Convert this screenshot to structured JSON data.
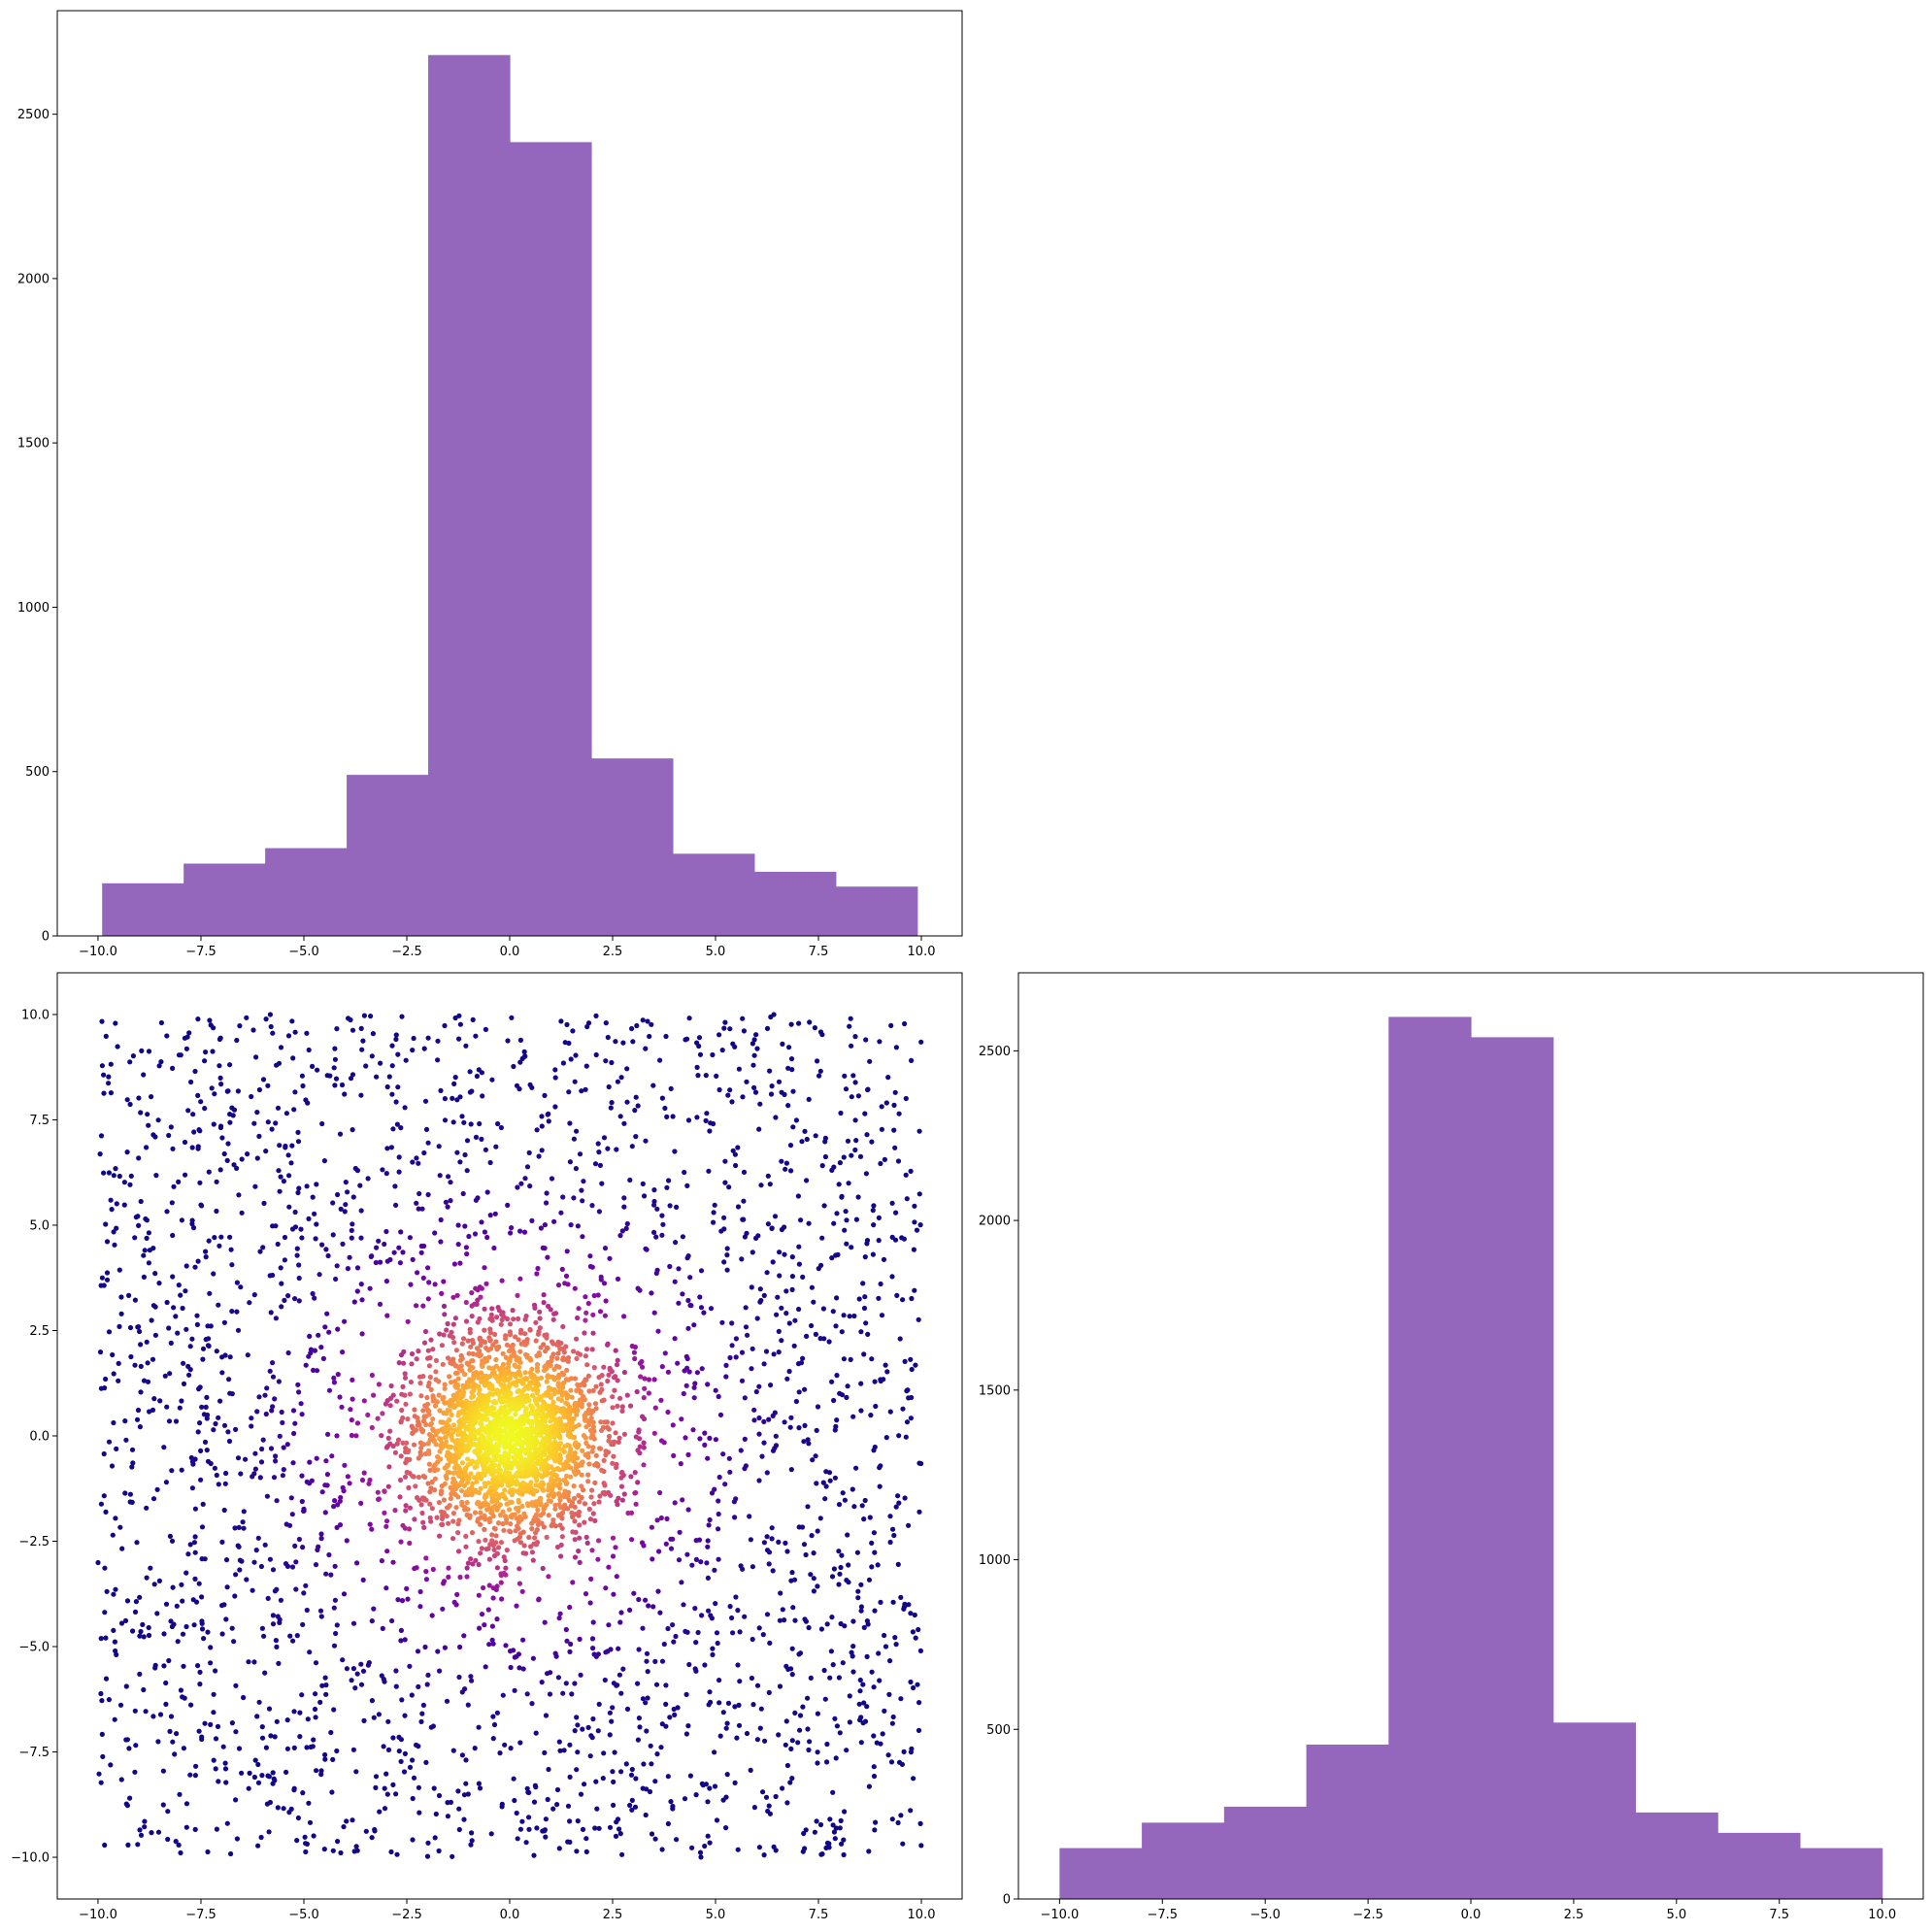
{
  "figure": {
    "background": "#ffffff"
  },
  "chart_data": [
    {
      "id": "hist-top",
      "type": "bar",
      "subtype": "histogram",
      "bar_color": "#9467bd",
      "bin_edges": [
        -9.9,
        -7.92,
        -5.94,
        -3.96,
        -1.98,
        0.0,
        1.98,
        3.96,
        5.94,
        7.92,
        9.9
      ],
      "values": [
        160,
        220,
        267,
        490,
        2680,
        2415,
        540,
        250,
        195,
        150
      ],
      "xlim": [
        -10.99,
        10.99
      ],
      "ylim": [
        0,
        2815
      ],
      "xticks": [
        -10.0,
        -7.5,
        -5.0,
        -2.5,
        0.0,
        2.5,
        5.0,
        7.5,
        10.0
      ],
      "xtick_labels": [
        "−10.0",
        "−7.5",
        "−5.0",
        "−2.5",
        "0.0",
        "2.5",
        "5.0",
        "7.5",
        "10.0"
      ],
      "yticks": [
        0,
        500,
        1000,
        1500,
        2000,
        2500
      ],
      "ytick_labels": [
        "0",
        "500",
        "1000",
        "1500",
        "2000",
        "2500"
      ],
      "title": "",
      "xlabel": "",
      "ylabel": "",
      "grid": false
    },
    {
      "id": "scatter",
      "type": "scatter",
      "colormap": "plasma",
      "color_encoding": "density",
      "point_count": 5000,
      "distribution": {
        "central_gaussian_sigma": 1.2,
        "central_fraction": 0.45,
        "uniform_range": [
          -10,
          10
        ]
      },
      "xlim": [
        -10.99,
        10.99
      ],
      "ylim": [
        -10.99,
        10.99
      ],
      "xticks": [
        -10.0,
        -7.5,
        -5.0,
        -2.5,
        0.0,
        2.5,
        5.0,
        7.5,
        10.0
      ],
      "xtick_labels": [
        "−10.0",
        "−7.5",
        "−5.0",
        "−2.5",
        "0.0",
        "2.5",
        "5.0",
        "7.5",
        "10.0"
      ],
      "yticks": [
        -10.0,
        -7.5,
        -5.0,
        -2.5,
        0.0,
        2.5,
        5.0,
        7.5,
        10.0
      ],
      "ytick_labels": [
        "−10.0",
        "−7.5",
        "−5.0",
        "−2.5",
        "0.0",
        "2.5",
        "5.0",
        "7.5",
        "10.0"
      ],
      "title": "",
      "xlabel": "",
      "ylabel": "",
      "grid": false
    },
    {
      "id": "hist-right",
      "type": "bar",
      "subtype": "histogram",
      "bar_color": "#9467bd",
      "bin_edges": [
        -10.0,
        -8.0,
        -6.0,
        -4.0,
        -2.0,
        0.0,
        2.0,
        4.0,
        6.0,
        8.0,
        10.0
      ],
      "values": [
        150,
        225,
        272,
        455,
        2600,
        2540,
        520,
        255,
        195,
        150
      ],
      "xlim": [
        -11.0,
        11.0
      ],
      "ylim": [
        0,
        2730
      ],
      "xticks": [
        -10.0,
        -7.5,
        -5.0,
        -2.5,
        0.0,
        2.5,
        5.0,
        7.5,
        10.0
      ],
      "xtick_labels": [
        "−10.0",
        "−7.5",
        "−5.0",
        "−2.5",
        "0.0",
        "2.5",
        "5.0",
        "7.5",
        "10.0"
      ],
      "yticks": [
        0,
        500,
        1000,
        1500,
        2000,
        2500
      ],
      "ytick_labels": [
        "0",
        "500",
        "1000",
        "1500",
        "2000",
        "2500"
      ],
      "title": "",
      "xlabel": "",
      "ylabel": "",
      "grid": false
    }
  ]
}
